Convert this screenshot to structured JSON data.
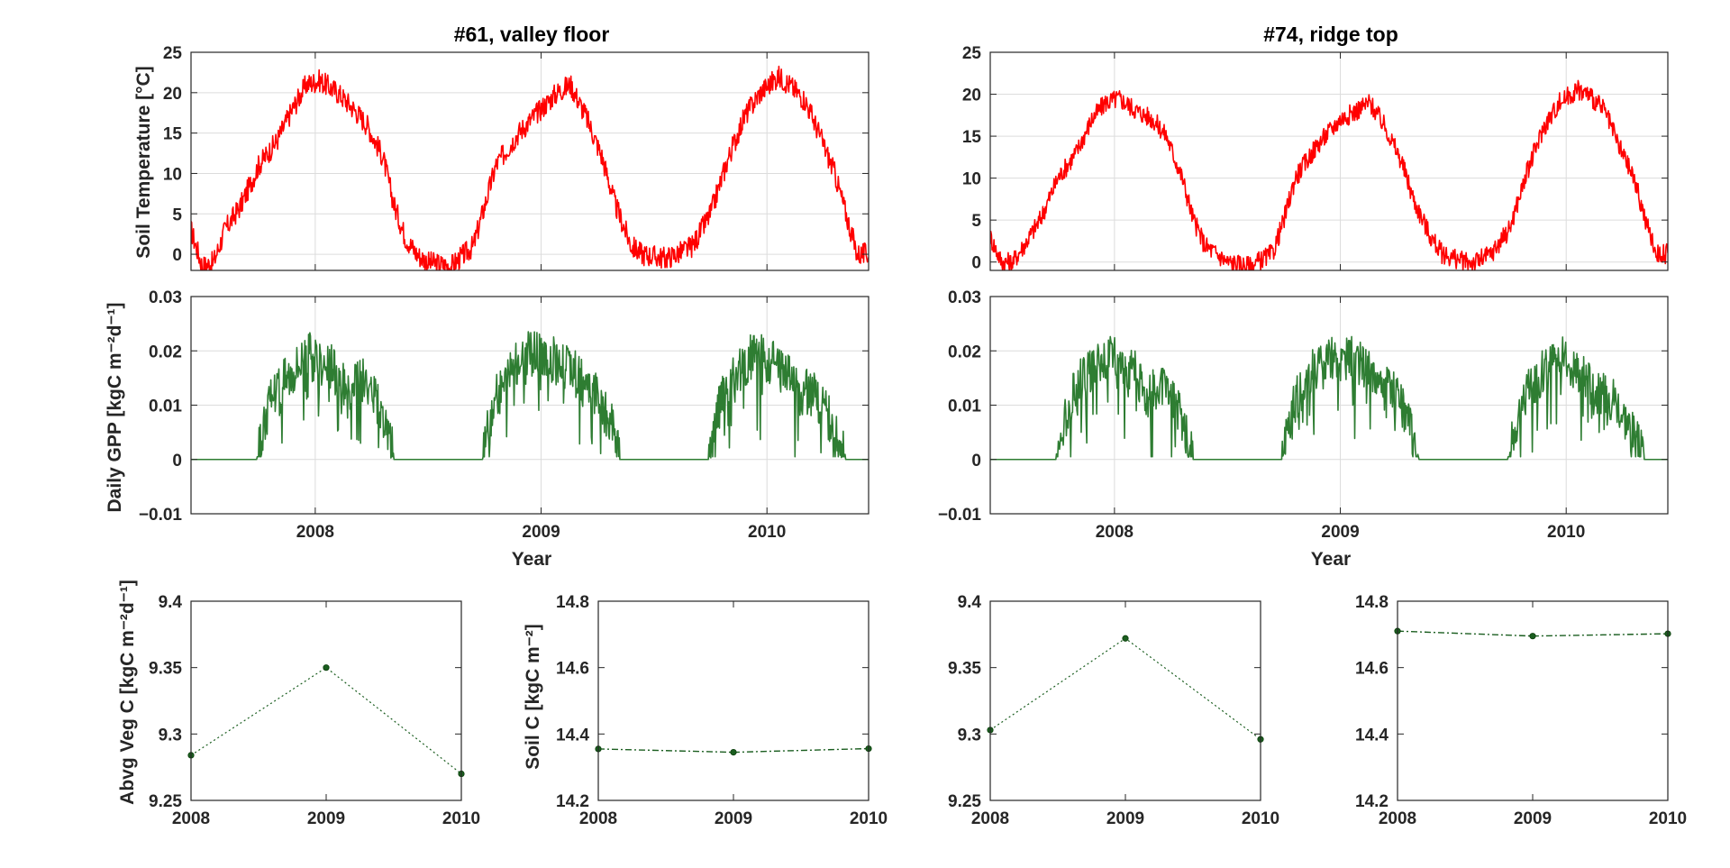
{
  "figure": {
    "left_title": "#61, valley floor",
    "right_title": "#74, ridge top",
    "temp_ylabel": "Soil Temperature [°C]",
    "gpp_ylabel": "Daily GPP [kgC m⁻²d⁻¹]",
    "veg_ylabel": "Abvg Veg C [kgC m⁻²d⁻¹]",
    "soil_ylabel": "Soil C [kgC m⁻²]",
    "xlabel": "Year"
  },
  "colors": {
    "temperature": "#ff0000",
    "gpp": "#2e7d32",
    "marker": "#1b5e20",
    "axis": "#262626",
    "grid": "#dcdcdc"
  },
  "chart_data": [
    {
      "id": "temp-61",
      "type": "line",
      "title": "#61, valley floor",
      "xlabel": "",
      "ylabel": "Soil Temperature [°C]",
      "xlim": [
        2007.45,
        2010.45
      ],
      "ylim": [
        -2,
        25
      ],
      "xticks": [
        2008,
        2009,
        2010
      ],
      "xticklabels": [],
      "yticks": [
        0,
        5,
        10,
        15,
        20,
        25
      ],
      "yticklabels": [
        "0",
        "5",
        "10",
        "15",
        "20",
        "25"
      ],
      "grid": true,
      "series": [
        {
          "x": [
            2007.45,
            2007.5,
            2007.55,
            2007.6,
            2007.67,
            2007.75,
            2007.83,
            2007.9,
            2007.96,
            2008.02,
            2008.1,
            2008.17,
            2008.23,
            2008.3,
            2008.35,
            2008.4,
            2008.45,
            2008.5,
            2008.6,
            2008.7,
            2008.75,
            2008.8,
            2008.9,
            2009.0,
            2009.07,
            2009.13,
            2009.2,
            2009.27,
            2009.33,
            2009.4,
            2009.45,
            2009.55,
            2009.6,
            2009.67,
            2009.75,
            2009.83,
            2009.9,
            2009.97,
            2010.05,
            2010.1,
            2010.17,
            2010.23,
            2010.3,
            2010.35,
            2010.4,
            2010.45
          ],
          "y": [
            3,
            -1.5,
            -1,
            3,
            6,
            11,
            14,
            18,
            21,
            21.5,
            20,
            18,
            16,
            12,
            6,
            2,
            0,
            -1,
            -1.5,
            1,
            6,
            11,
            15,
            18,
            20,
            21,
            17,
            12,
            6,
            1,
            0,
            -0.5,
            0,
            1,
            5,
            12,
            17,
            20,
            22,
            21,
            19,
            15,
            10,
            5,
            0,
            0
          ]
        }
      ]
    },
    {
      "id": "temp-74",
      "type": "line",
      "title": "#74, ridge top",
      "xlabel": "",
      "ylabel": "",
      "xlim": [
        2007.45,
        2010.45
      ],
      "ylim": [
        -1,
        25
      ],
      "xticks": [
        2008,
        2009,
        2010
      ],
      "xticklabels": [],
      "yticks": [
        0,
        5,
        10,
        15,
        20,
        25
      ],
      "yticklabels": [
        "0",
        "5",
        "10",
        "15",
        "20",
        "25"
      ],
      "grid": true,
      "series": [
        {
          "x": [
            2007.45,
            2007.5,
            2007.55,
            2007.6,
            2007.67,
            2007.75,
            2007.83,
            2007.9,
            2007.96,
            2008.02,
            2008.1,
            2008.17,
            2008.23,
            2008.3,
            2008.35,
            2008.4,
            2008.45,
            2008.5,
            2008.6,
            2008.7,
            2008.75,
            2008.8,
            2008.9,
            2009.0,
            2009.07,
            2009.13,
            2009.2,
            2009.27,
            2009.33,
            2009.4,
            2009.45,
            2009.55,
            2009.6,
            2009.67,
            2009.75,
            2009.83,
            2009.9,
            2009.97,
            2010.05,
            2010.1,
            2010.17,
            2010.23,
            2010.3,
            2010.35,
            2010.4,
            2010.45
          ],
          "y": [
            3,
            0,
            0,
            2,
            5,
            10,
            13,
            17,
            19,
            19.5,
            18,
            17,
            15,
            10,
            5,
            2,
            1,
            0,
            -0.5,
            1,
            5,
            10,
            14,
            17,
            18,
            19,
            16,
            12,
            7,
            3,
            1,
            0,
            0,
            1,
            4,
            11,
            16,
            19,
            20.5,
            20,
            18,
            14,
            10,
            5,
            1,
            1
          ]
        }
      ]
    },
    {
      "id": "gpp-61",
      "type": "line",
      "title": "",
      "xlabel": "Year",
      "ylabel": "Daily GPP [kgC m⁻²d⁻¹]",
      "xlim": [
        2007.45,
        2010.45
      ],
      "ylim": [
        -0.01,
        0.03
      ],
      "xticks": [
        2008,
        2009,
        2010
      ],
      "xticklabels": [
        "2008",
        "2009",
        "2010"
      ],
      "yticks": [
        -0.01,
        0,
        0.01,
        0.02,
        0.03
      ],
      "yticklabels": [
        "−0.01",
        "0",
        "0.01",
        "0.02",
        "0.03"
      ],
      "grid": true,
      "series": [
        {
          "x": [
            2007.45,
            2007.74,
            2007.76,
            2007.8,
            2007.85,
            2007.9,
            2007.95,
            2008.0,
            2008.05,
            2008.1,
            2008.15,
            2008.2,
            2008.25,
            2008.3,
            2008.33,
            2008.35,
            2008.74,
            2008.76,
            2008.8,
            2008.85,
            2008.9,
            2008.95,
            2009.0,
            2009.05,
            2009.1,
            2009.15,
            2009.2,
            2009.25,
            2009.3,
            2009.33,
            2009.35,
            2009.74,
            2009.76,
            2009.8,
            2009.85,
            2009.9,
            2009.95,
            2010.0,
            2010.05,
            2010.1,
            2010.15,
            2010.2,
            2010.25,
            2010.3,
            2010.33,
            2010.35,
            2010.45
          ],
          "y": [
            0,
            0,
            0.004,
            0.012,
            0.015,
            0.017,
            0.02,
            0.019,
            0.018,
            0.016,
            0.012,
            0.015,
            0.013,
            0.009,
            0.004,
            0,
            0,
            0.005,
            0.012,
            0.016,
            0.019,
            0.02,
            0.02,
            0.019,
            0.018,
            0.016,
            0.014,
            0.012,
            0.008,
            0.004,
            0,
            0,
            0.004,
            0.012,
            0.015,
            0.018,
            0.02,
            0.019,
            0.017,
            0.016,
            0.012,
            0.014,
            0.01,
            0.006,
            0.003,
            0,
            0
          ]
        }
      ]
    },
    {
      "id": "gpp-74",
      "type": "line",
      "title": "",
      "xlabel": "Year",
      "ylabel": "",
      "xlim": [
        2007.45,
        2010.45
      ],
      "ylim": [
        -0.01,
        0.03
      ],
      "xticks": [
        2008,
        2009,
        2010
      ],
      "xticklabels": [
        "2008",
        "2009",
        "2010"
      ],
      "yticks": [
        -0.01,
        0,
        0.01,
        0.02,
        0.03
      ],
      "yticklabels": [
        "−0.01",
        "0",
        "0.01",
        "0.02",
        "0.03"
      ],
      "grid": true,
      "series": [
        {
          "x": [
            2007.45,
            2007.74,
            2007.76,
            2007.8,
            2007.85,
            2007.9,
            2007.95,
            2008.0,
            2008.05,
            2008.1,
            2008.15,
            2008.2,
            2008.25,
            2008.3,
            2008.33,
            2008.35,
            2008.74,
            2008.76,
            2008.8,
            2008.85,
            2008.9,
            2008.95,
            2009.0,
            2009.05,
            2009.1,
            2009.15,
            2009.2,
            2009.25,
            2009.3,
            2009.33,
            2009.35,
            2009.74,
            2009.76,
            2009.8,
            2009.85,
            2009.9,
            2009.95,
            2010.0,
            2010.05,
            2010.1,
            2010.15,
            2010.2,
            2010.25,
            2010.3,
            2010.33,
            2010.35,
            2010.45
          ],
          "y": [
            0,
            0,
            0.004,
            0.011,
            0.015,
            0.017,
            0.019,
            0.019,
            0.018,
            0.016,
            0.012,
            0.014,
            0.012,
            0.008,
            0.003,
            0,
            0,
            0.004,
            0.011,
            0.015,
            0.018,
            0.019,
            0.019,
            0.019,
            0.018,
            0.016,
            0.014,
            0.012,
            0.008,
            0.003,
            0,
            0,
            0.004,
            0.011,
            0.014,
            0.017,
            0.019,
            0.019,
            0.017,
            0.015,
            0.012,
            0.013,
            0.009,
            0.005,
            0.002,
            0,
            0
          ]
        }
      ]
    },
    {
      "id": "veg-61",
      "type": "line",
      "title": "",
      "xlabel": "",
      "ylabel": "Abvg Veg C [kgC m⁻²d⁻¹]",
      "xlim": [
        2008,
        2010
      ],
      "ylim": [
        9.25,
        9.4
      ],
      "xticks": [
        2008,
        2009,
        2010
      ],
      "xticklabels": [
        "2008",
        "2009",
        "2010"
      ],
      "yticks": [
        9.25,
        9.3,
        9.35,
        9.4
      ],
      "yticklabels": [
        "9.25",
        "9.3",
        "9.35",
        "9.4"
      ],
      "grid": false,
      "series": [
        {
          "x": [
            2008,
            2009,
            2010
          ],
          "y": [
            9.284,
            9.35,
            9.27
          ]
        }
      ]
    },
    {
      "id": "soil-61",
      "type": "line",
      "title": "",
      "xlabel": "",
      "ylabel": "Soil C [kgC m⁻²]",
      "xlim": [
        2008,
        2010
      ],
      "ylim": [
        14.2,
        14.8
      ],
      "xticks": [
        2008,
        2009,
        2010
      ],
      "xticklabels": [
        "2008",
        "2009",
        "2010"
      ],
      "yticks": [
        14.2,
        14.4,
        14.6,
        14.8
      ],
      "yticklabels": [
        "14.2",
        "14.4",
        "14.6",
        "14.8"
      ],
      "grid": false,
      "series": [
        {
          "x": [
            2008,
            2009,
            2010
          ],
          "y": [
            14.355,
            14.345,
            14.356
          ]
        }
      ]
    },
    {
      "id": "veg-74",
      "type": "line",
      "title": "",
      "xlabel": "",
      "ylabel": "",
      "xlim": [
        2008,
        2010
      ],
      "ylim": [
        9.25,
        9.4
      ],
      "xticks": [
        2008,
        2009,
        2010
      ],
      "xticklabels": [
        "2008",
        "2009",
        "2010"
      ],
      "yticks": [
        9.25,
        9.3,
        9.35,
        9.4
      ],
      "yticklabels": [
        "9.25",
        "9.3",
        "9.35",
        "9.4"
      ],
      "grid": false,
      "series": [
        {
          "x": [
            2008,
            2009,
            2010
          ],
          "y": [
            9.303,
            9.372,
            9.296
          ]
        }
      ]
    },
    {
      "id": "soil-74",
      "type": "line",
      "title": "",
      "xlabel": "",
      "ylabel": "",
      "xlim": [
        2008,
        2010
      ],
      "ylim": [
        14.2,
        14.8
      ],
      "xticks": [
        2008,
        2009,
        2010
      ],
      "xticklabels": [
        "2008",
        "2009",
        "2010"
      ],
      "yticks": [
        14.2,
        14.4,
        14.6,
        14.8
      ],
      "yticklabels": [
        "14.2",
        "14.4",
        "14.6",
        "14.8"
      ],
      "grid": false,
      "series": [
        {
          "x": [
            2008,
            2009,
            2010
          ],
          "y": [
            14.71,
            14.695,
            14.702
          ]
        }
      ]
    }
  ]
}
